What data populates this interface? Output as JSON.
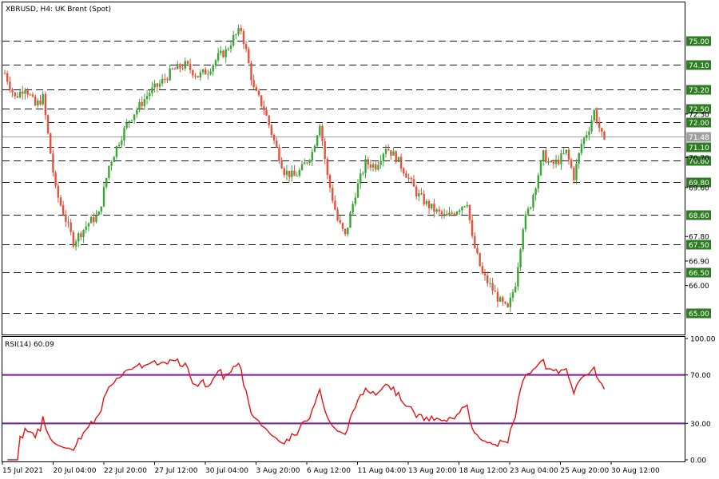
{
  "chart_title": "XBRUSD, H4:  UK Brent (Spot)",
  "colors": {
    "bull": "#3aa636",
    "bear": "#e8503a",
    "level_box": "#2e7d23",
    "rsi_line": "#e81010",
    "rsi_levels": "#7a1b9a",
    "grid_dash": "#1a1a1a",
    "current_line": "#9e9e9e"
  },
  "chart_data": [
    {
      "type": "candlestick",
      "title": "XBRUSD, H4:  UK Brent (Spot)",
      "ylim": [
        64.2,
        76.4
      ],
      "price_axis_ticks": [
        "75.00",
        "74.10",
        "73.20",
        "72.50",
        "72.30",
        "72.00",
        "71.48",
        "71.10",
        "70.70",
        "70.60",
        "69.80",
        "69.60",
        "68.60",
        "67.80",
        "67.50",
        "66.90",
        "66.50",
        "66.00",
        "65.00"
      ],
      "levels": [
        75.0,
        74.1,
        73.2,
        72.5,
        72.0,
        71.1,
        70.6,
        69.8,
        68.6,
        67.5,
        66.5,
        65.0
      ],
      "level_labels": [
        "75.00",
        "74.10",
        "73.20",
        "72.50",
        "72.00",
        "71.10",
        "70.60",
        "69.80",
        "68.60",
        "67.50",
        "66.50",
        "65.00"
      ],
      "current_price": 71.48,
      "current_price_label": "71.48",
      "x_labels": [
        "15 Jul 2021",
        "20 Jul 04:00",
        "22 Jul 20:00",
        "27 Jul 12:00",
        "30 Jul 04:00",
        "3 Aug 20:00",
        "6 Aug 12:00",
        "11 Aug 04:00",
        "13 Aug 20:00",
        "18 Aug 12:00",
        "23 Aug 04:00",
        "25 Aug 20:00",
        "30 Aug 12:00"
      ],
      "close_path": [
        [
          0,
          73.8
        ],
        [
          4,
          72.9
        ],
        [
          8,
          73.3
        ],
        [
          12,
          72.6
        ],
        [
          15,
          72.9
        ],
        [
          20,
          69.5
        ],
        [
          23,
          68.7
        ],
        [
          27,
          67.6
        ],
        [
          33,
          68.3
        ],
        [
          37,
          68.6
        ],
        [
          41,
          70.4
        ],
        [
          45,
          71.3
        ],
        [
          49,
          72.1
        ],
        [
          53,
          72.6
        ],
        [
          57,
          73.1
        ],
        [
          61,
          73.4
        ],
        [
          66,
          73.9
        ],
        [
          71,
          74.1
        ],
        [
          76,
          73.7
        ],
        [
          80,
          73.9
        ],
        [
          84,
          74.4
        ],
        [
          87,
          74.6
        ],
        [
          90,
          75.1
        ],
        [
          93,
          75.4
        ],
        [
          95,
          74.6
        ],
        [
          98,
          73.2
        ],
        [
          102,
          72.5
        ],
        [
          106,
          71.3
        ],
        [
          110,
          70.2
        ],
        [
          114,
          70.0
        ],
        [
          117,
          70.3
        ],
        [
          121,
          70.9
        ],
        [
          124,
          72.0
        ],
        [
          127,
          70.0
        ],
        [
          131,
          68.4
        ],
        [
          134,
          67.8
        ],
        [
          138,
          69.4
        ],
        [
          142,
          70.5
        ],
        [
          146,
          70.4
        ],
        [
          150,
          71.1
        ],
        [
          154,
          70.7
        ],
        [
          158,
          70.1
        ],
        [
          162,
          69.4
        ],
        [
          166,
          69.0
        ],
        [
          170,
          68.7
        ],
        [
          174,
          68.5
        ],
        [
          178,
          68.8
        ],
        [
          182,
          69.1
        ],
        [
          184,
          67.7
        ],
        [
          188,
          66.4
        ],
        [
          191,
          66.0
        ],
        [
          195,
          65.4
        ],
        [
          198,
          65.1
        ],
        [
          201,
          66.1
        ],
        [
          204,
          68.2
        ],
        [
          207,
          69.0
        ],
        [
          210,
          70.1
        ],
        [
          212,
          70.8
        ],
        [
          215,
          70.4
        ],
        [
          218,
          70.6
        ],
        [
          221,
          70.9
        ],
        [
          224,
          70.0
        ],
        [
          227,
          71.2
        ],
        [
          230,
          71.8
        ],
        [
          232,
          72.4
        ],
        [
          234,
          71.8
        ],
        [
          236,
          71.2
        ]
      ],
      "rsi": {
        "label": "RSI(14) 60.09",
        "period": 14,
        "value": 60.09,
        "ylim": [
          0,
          100
        ],
        "levels": [
          70,
          30
        ],
        "axis_ticks": [
          "100.00",
          "70.00",
          "30.00",
          "0.00"
        ]
      }
    }
  ]
}
